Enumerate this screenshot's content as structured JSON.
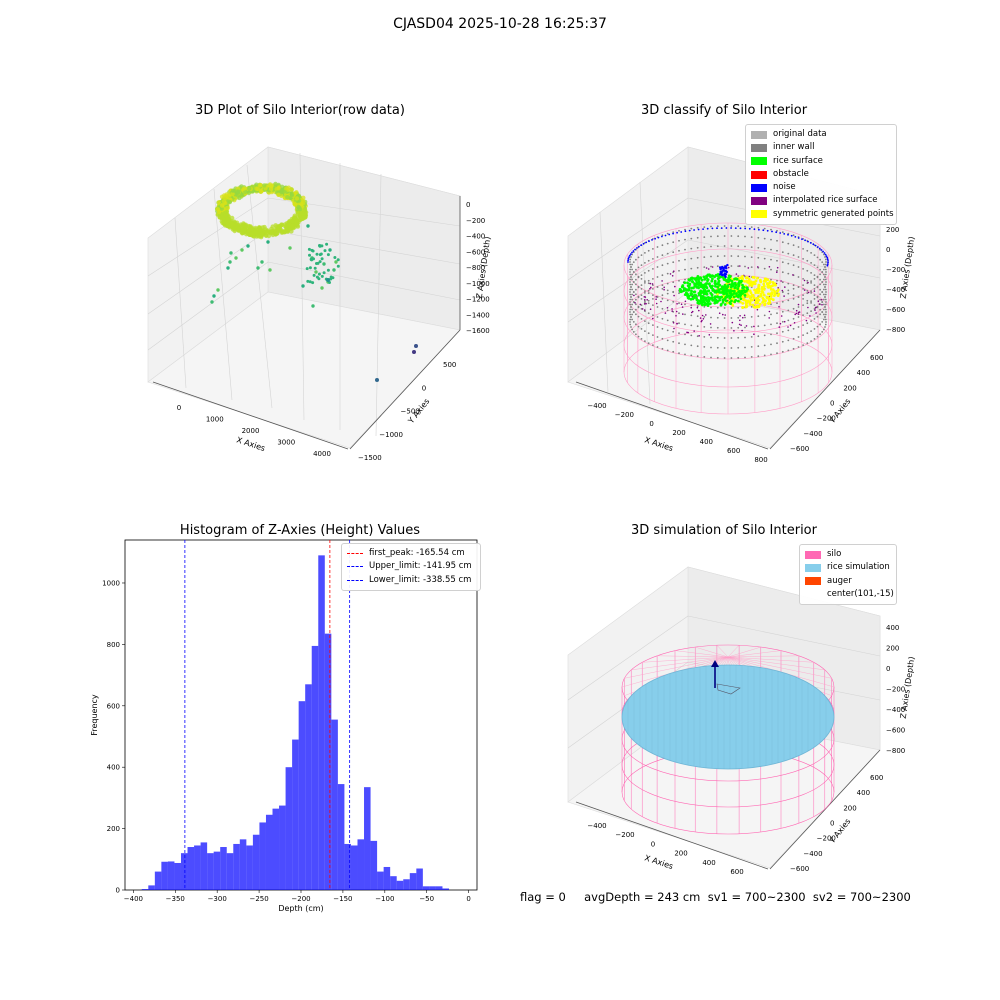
{
  "suptitle": "CJASD04 2025-10-28 16:25:37",
  "status_line": "flag = 0     avgDepth = 243 cm  sv1 = 700~2300  sv2 = 700~2300",
  "chart_data": [
    {
      "id": "raw",
      "type": "scatter",
      "title": "3D Plot of Silo Interior(row data)",
      "xlabel": "X Axies",
      "ylabel": "Y Axies",
      "zlabel": "Z Axies (Depth)",
      "xticks": [
        "0",
        "1000",
        "2000",
        "3000",
        "4000"
      ],
      "yticks": [
        "500",
        "0",
        "−500",
        "−1000",
        "−1500"
      ],
      "zticks": [
        "0",
        "−200",
        "−400",
        "−600",
        "−800",
        "−1000",
        "−1200",
        "−1400",
        "−1600"
      ],
      "xlim": [
        -500,
        4500
      ],
      "ylim": [
        -1500,
        700
      ],
      "zlim": [
        -1700,
        100
      ],
      "colormap": "viridis",
      "description_points": "dense ring of points near depth -200 around x 0..1000, scattered points down to -1600"
    },
    {
      "id": "classify",
      "type": "scatter",
      "title": "3D classify of Silo Interior",
      "xlabel": "X Axies",
      "ylabel": "Y Axies",
      "zlabel": "Z Axies (Depth)",
      "xticks": [
        "−400",
        "−200",
        "0",
        "200",
        "400",
        "600",
        "800"
      ],
      "yticks": [
        "600",
        "400",
        "200",
        "0",
        "−200",
        "−400",
        "−600"
      ],
      "zticks": [
        "200",
        "0",
        "−200",
        "−400",
        "−600",
        "−800"
      ],
      "legend": [
        {
          "label": "original data",
          "color": "#b0b0b0"
        },
        {
          "label": "inner wall",
          "color": "#808080"
        },
        {
          "label": "rice surface",
          "color": "#00ff00"
        },
        {
          "label": "obstacle",
          "color": "#ff0000"
        },
        {
          "label": "noise",
          "color": "#0000ff"
        },
        {
          "label": "interpolated rice surface",
          "color": "#800080"
        },
        {
          "label": "symmetric generated points",
          "color": "#ffff00"
        }
      ]
    },
    {
      "id": "histogram",
      "type": "bar",
      "title": "Histogram of Z-Axies (Height) Values",
      "xlabel": "Depth (cm)",
      "ylabel": "Frequency",
      "xlim": [
        -410,
        10
      ],
      "ylim": [
        0,
        1140
      ],
      "xticks": [
        -400,
        -350,
        -300,
        -250,
        -200,
        -150,
        -100,
        -50,
        0
      ],
      "yticks": [
        0,
        200,
        400,
        600,
        800,
        1000
      ],
      "bar_color": "#0000ff",
      "bin_start": -390,
      "bin_width": 7.8,
      "values": [
        3,
        15,
        60,
        92,
        93,
        88,
        120,
        140,
        145,
        155,
        120,
        125,
        140,
        120,
        150,
        165,
        145,
        180,
        220,
        245,
        265,
        275,
        400,
        490,
        615,
        670,
        795,
        1090,
        835,
        555,
        345,
        150,
        145,
        165,
        335,
        160,
        60,
        75,
        45,
        30,
        35,
        55,
        70,
        12,
        12,
        12,
        5
      ],
      "vlines": [
        {
          "label": "first_peak: -165.54 cm",
          "value": -165.54,
          "color": "#ff0000"
        },
        {
          "label": "Upper_limit: -141.95 cm",
          "value": -141.95,
          "color": "#0000ff"
        },
        {
          "label": "Lower_limit: -338.55 cm",
          "value": -338.55,
          "color": "#0000ff"
        }
      ]
    },
    {
      "id": "simulation",
      "type": "scatter",
      "title": "3D simulation of Silo Interior",
      "xlabel": "X Axies",
      "ylabel": "Y Axies",
      "zlabel": "Z Axies (Depth)",
      "xticks": [
        "−400",
        "−200",
        "0",
        "200",
        "400",
        "600"
      ],
      "yticks": [
        "600",
        "400",
        "200",
        "0",
        "−200",
        "−400",
        "−600"
      ],
      "zticks": [
        "400",
        "200",
        "0",
        "−200",
        "−400",
        "−600",
        "−800"
      ],
      "legend": [
        {
          "label": "silo",
          "color": "#ff69b4"
        },
        {
          "label": "rice simulation",
          "color": "#87ceeb"
        },
        {
          "label": "auger",
          "color": "#ff4500"
        },
        {
          "label": "center(101,-15)",
          "color": ""
        }
      ]
    }
  ]
}
